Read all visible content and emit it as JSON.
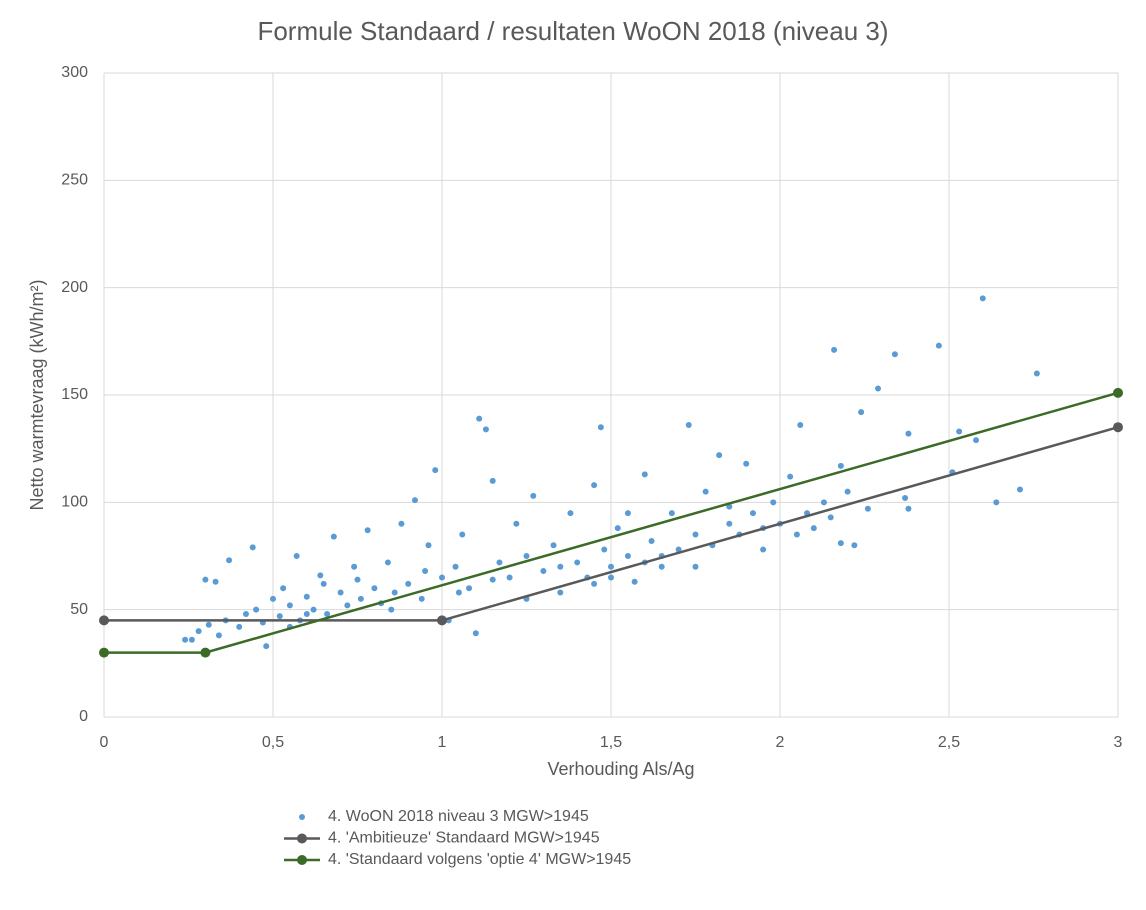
{
  "chart_data": {
    "type": "scatter",
    "title": "Formule Standaard / resultaten WoON 2018 (niveau 3)",
    "x_label": "Verhouding Als/Ag",
    "y_label": "Netto warmtevraag (kWh/m²)",
    "xlim": [
      0,
      3
    ],
    "xticks": [
      0,
      {
        "value": 0.5,
        "label": "0,5"
      },
      1,
      {
        "value": 1.5,
        "label": "1,5"
      },
      2,
      {
        "value": 2.5,
        "label": "2,5"
      },
      3
    ],
    "ylim": [
      0,
      300
    ],
    "yticks": [
      0,
      50,
      100,
      150,
      200,
      250,
      300
    ],
    "grid": true,
    "legend": "bottom",
    "series": [
      {
        "name": "4. WoON 2018 niveau 3 MGW>1945",
        "color": "#5b9bd5",
        "mode": "markers",
        "x": [
          0.24,
          0.26,
          0.28,
          0.3,
          0.31,
          0.33,
          0.34,
          0.36,
          0.37,
          0.4,
          0.42,
          0.44,
          0.45,
          0.47,
          0.48,
          0.5,
          0.52,
          0.53,
          0.55,
          0.57,
          0.58,
          0.6,
          0.62,
          0.64,
          0.66,
          0.68,
          0.7,
          0.72,
          0.74,
          0.76,
          0.78,
          0.8,
          0.82,
          0.84,
          0.86,
          0.88,
          0.9,
          0.92,
          0.94,
          0.96,
          0.98,
          1.0,
          1.02,
          1.04,
          1.06,
          1.08,
          1.1,
          1.11,
          1.13,
          1.15,
          1.17,
          1.2,
          1.22,
          1.25,
          1.27,
          1.3,
          1.33,
          1.35,
          1.38,
          1.4,
          1.43,
          1.45,
          1.47,
          1.48,
          1.5,
          1.52,
          1.55,
          1.57,
          1.6,
          1.62,
          1.65,
          1.68,
          1.7,
          1.73,
          1.75,
          1.78,
          1.8,
          1.82,
          1.85,
          1.88,
          1.9,
          1.92,
          1.95,
          1.98,
          2.0,
          2.03,
          2.06,
          2.08,
          2.1,
          2.13,
          2.16,
          2.18,
          2.18,
          2.2,
          2.22,
          2.24,
          2.26,
          2.29,
          2.34,
          2.37,
          2.38,
          2.38,
          2.47,
          2.51,
          2.53,
          2.58,
          2.6,
          2.64,
          2.71,
          2.76,
          0.55,
          0.6,
          0.65,
          0.75,
          0.85,
          0.95,
          1.05,
          1.15,
          1.25,
          1.35,
          1.45,
          1.55,
          1.65,
          1.75,
          1.85,
          1.95,
          2.05,
          2.15,
          1.5,
          1.6
        ],
        "values": [
          36,
          36,
          40,
          64,
          43,
          63,
          38,
          45,
          73,
          42,
          48,
          79,
          50,
          44,
          33,
          55,
          47,
          60,
          52,
          75,
          45,
          56,
          50,
          66,
          48,
          84,
          58,
          52,
          70,
          55,
          87,
          60,
          53,
          72,
          58,
          90,
          62,
          101,
          55,
          80,
          115,
          65,
          45,
          70,
          85,
          60,
          39,
          139,
          134,
          110,
          72,
          65,
          90,
          75,
          103,
          68,
          80,
          58,
          95,
          72,
          65,
          108,
          135,
          78,
          70,
          88,
          75,
          63,
          113,
          82,
          70,
          95,
          78,
          136,
          85,
          105,
          80,
          122,
          90,
          85,
          118,
          95,
          78,
          100,
          90,
          112,
          136,
          95,
          88,
          100,
          171,
          81,
          117,
          105,
          80,
          142,
          97,
          153,
          169,
          102,
          97,
          132,
          173,
          114,
          133,
          129,
          195,
          100,
          106,
          160,
          42,
          48,
          62,
          64,
          50,
          68,
          58,
          64,
          55,
          70,
          62,
          95,
          75,
          70,
          98,
          88,
          85,
          93,
          65,
          72
        ]
      },
      {
        "name": "4. 'Ambitieuze' Standaard MGW>1945",
        "color": "#595959",
        "mode": "lines+markers",
        "x": [
          0,
          1,
          3
        ],
        "values": [
          45,
          45,
          135
        ]
      },
      {
        "name": "4. 'Standaard volgens 'optie 4' MGW>1945",
        "color": "#3b6b27",
        "mode": "lines+markers",
        "x": [
          0,
          0.3,
          3
        ],
        "values": [
          30,
          30,
          151
        ]
      }
    ]
  }
}
